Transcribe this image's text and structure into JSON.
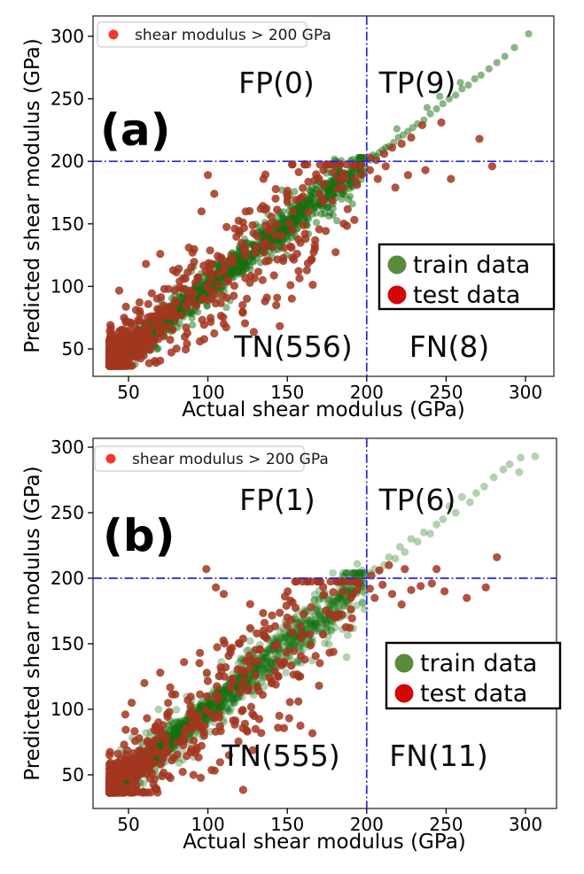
{
  "figure": {
    "background": "#ffffff",
    "border_color": "#3c3c3c",
    "tick_color": "#000000"
  },
  "chart_data": [
    {
      "type": "scatter",
      "panel_label": "(a)",
      "xlabel": "Actual shear modulus (GPa)",
      "ylabel": "Predicted shear modulus (GPa)",
      "x_ticks": [
        50,
        100,
        150,
        200,
        250,
        300
      ],
      "y_ticks": [
        50,
        100,
        150,
        200,
        250,
        300
      ],
      "xlim": [
        27,
        318
      ],
      "ylim": [
        27,
        317
      ],
      "grid": false,
      "threshold_gpa": 200,
      "threshold_line_color": "#2323e8",
      "inner_legend": {
        "label": "shear modulus > 200 GPa",
        "marker_color": "#f5372c",
        "position": "upper left"
      },
      "series_legend": {
        "position": "center right",
        "entries": [
          {
            "label": "train data",
            "color": "#5a8a3c"
          },
          {
            "label": "test data",
            "color": "#d40707"
          }
        ]
      },
      "quadrant_labels": {
        "FP": "FP(0)",
        "TP": "TP(9)",
        "TN": "TN(556)",
        "FN": "FN(8)"
      },
      "confusion_counts": {
        "FP": 0,
        "TP": 9,
        "TN": 556,
        "FN": 8
      },
      "series": [
        {
          "name": "train data",
          "color": "#157010",
          "opacity": 0.5,
          "radius": 4.1,
          "n_bulk": 2400,
          "seed": 20240,
          "bulk": {
            "xmin": 38,
            "range": 162,
            "power": 3.4,
            "uniform_frac": 0.1,
            "noise_base": 2.0,
            "noise_slope": 0.035,
            "wide_frac": 0.08,
            "wide_mult": 2.3,
            "ymin": 36.5,
            "ymax": 203
          },
          "feature_points": [
            [
              197,
              203
            ],
            [
              194,
              200
            ],
            [
              202,
              201
            ],
            [
              204,
              205
            ],
            [
              206,
              204
            ],
            [
              208,
              207
            ],
            [
              210,
              209
            ],
            [
              212,
              211
            ],
            [
              214,
              212
            ],
            [
              217,
              215
            ],
            [
              219,
              226
            ],
            [
              220,
              219
            ],
            [
              223,
              221
            ],
            [
              226,
              224
            ],
            [
              229,
              227
            ],
            [
              232,
              230
            ],
            [
              236,
              233
            ],
            [
              238,
              243
            ],
            [
              240,
              238
            ],
            [
              244,
              242
            ],
            [
              246,
              252
            ],
            [
              248,
              246
            ],
            [
              252,
              250
            ],
            [
              256,
              253
            ],
            [
              259,
              263
            ],
            [
              260,
              258
            ],
            [
              264,
              261
            ],
            [
              268,
              266
            ],
            [
              272,
              269
            ],
            [
              277,
              274
            ],
            [
              282,
              279
            ],
            [
              287,
              284
            ],
            [
              293,
              291
            ],
            [
              302,
              302
            ]
          ]
        },
        {
          "name": "test data",
          "color": "#a23620",
          "opacity": 0.85,
          "radius": 4.6,
          "n_bulk": 540,
          "seed": 777,
          "bulk": {
            "xmin": 38,
            "range": 160,
            "power": 3.0,
            "uniform_frac": 0.1,
            "noise_base": 4.5,
            "noise_slope": 0.16,
            "wide_frac": 0.06,
            "wide_mult": 1.8,
            "ymin": 36.5,
            "ymax": 197.5
          },
          "tp_points": [
            [
              202,
              203
            ],
            [
              206,
              201
            ],
            [
              211,
              206
            ],
            [
              216,
              211
            ],
            [
              222,
              214
            ],
            [
              228,
              219
            ],
            [
              235,
              229
            ],
            [
              247,
              231
            ],
            [
              271,
              218
            ]
          ],
          "fn_points": [
            [
              202,
              193
            ],
            [
              207,
              186
            ],
            [
              212,
              196
            ],
            [
              218,
              179
            ],
            [
              226,
              189
            ],
            [
              237,
              193
            ],
            [
              253,
              186
            ],
            [
              279,
              196
            ]
          ],
          "fp_points": [],
          "extra_points": [
            [
              100,
              189
            ],
            [
              104,
              174
            ],
            [
              96,
              160
            ],
            [
              135,
              186
            ],
            [
              172,
              170
            ],
            [
              185,
              179
            ],
            [
              192,
              196
            ],
            [
              160,
              172
            ],
            [
              150,
              168
            ],
            [
              120,
              143
            ],
            [
              88,
              131
            ],
            [
              70,
              126
            ],
            [
              61,
              118
            ],
            [
              95,
              56
            ],
            [
              110,
              70
            ],
            [
              122,
              79
            ],
            [
              136,
              88
            ],
            [
              152,
              101
            ],
            [
              165,
              121
            ],
            [
              143,
              85
            ]
          ]
        }
      ]
    },
    {
      "type": "scatter",
      "panel_label": "(b)",
      "xlabel": "Actual shear modulus (GPa)",
      "ylabel": "Predicted shear  modulus (GPa)",
      "x_ticks": [
        50,
        100,
        150,
        200,
        250,
        300
      ],
      "y_ticks": [
        50,
        100,
        150,
        200,
        250,
        300
      ],
      "xlim": [
        24,
        320
      ],
      "ylim": [
        24,
        307
      ],
      "grid": false,
      "threshold_gpa": 200,
      "threshold_line_color": "#2323e8",
      "inner_legend": {
        "label": "shear modulus > 200 GPa",
        "marker_color": "#f5372c",
        "position": "upper left"
      },
      "series_legend": {
        "position": "center right",
        "entries": [
          {
            "label": "train data",
            "color": "#5a8a3c"
          },
          {
            "label": "test data",
            "color": "#d40707"
          }
        ]
      },
      "quadrant_labels": {
        "FP": "FP(1)",
        "TP": "TP(6)",
        "TN": "TN(555)",
        "FN": "FN(11)"
      },
      "confusion_counts": {
        "FP": 1,
        "TP": 6,
        "TN": 555,
        "FN": 11
      },
      "series": [
        {
          "name": "train data",
          "color": "#157010",
          "opacity": 0.32,
          "radius": 4.4,
          "n_bulk": 2400,
          "seed": 31337,
          "bulk": {
            "xmin": 38,
            "range": 162,
            "power": 3.4,
            "uniform_frac": 0.1,
            "noise_base": 2.2,
            "noise_slope": 0.04,
            "wide_frac": 0.1,
            "wide_mult": 2.5,
            "ymin": 36.5,
            "ymax": 204
          },
          "feature_points": [
            [
              191,
              204
            ],
            [
              194,
              211
            ],
            [
              197,
              206
            ],
            [
              202,
              204
            ],
            [
              205,
              207
            ],
            [
              208,
              206
            ],
            [
              211,
              210
            ],
            [
              214,
              216
            ],
            [
              218,
              215
            ],
            [
              221,
              224
            ],
            [
              224,
              220
            ],
            [
              228,
              230
            ],
            [
              232,
              228
            ],
            [
              236,
              235
            ],
            [
              240,
              234
            ],
            [
              244,
              241
            ],
            [
              248,
              245
            ],
            [
              252,
              255
            ],
            [
              256,
              250
            ],
            [
              260,
              262
            ],
            [
              265,
              258
            ],
            [
              269,
              265
            ],
            [
              274,
              270
            ],
            [
              280,
              277
            ],
            [
              286,
              283
            ],
            [
              290,
              287
            ],
            [
              296,
              281
            ],
            [
              297,
              292
            ],
            [
              306,
              293
            ]
          ]
        },
        {
          "name": "test data",
          "color": "#a23620",
          "opacity": 0.85,
          "radius": 4.6,
          "n_bulk": 540,
          "seed": 555,
          "bulk": {
            "xmin": 38,
            "range": 160,
            "power": 3.0,
            "uniform_frac": 0.1,
            "noise_base": 4.8,
            "noise_slope": 0.17,
            "wide_frac": 0.06,
            "wide_mult": 1.8,
            "ymin": 36.5,
            "ymax": 197.5
          },
          "tp_points": [
            [
              203,
              202
            ],
            [
              208,
              206
            ],
            [
              214,
              210
            ],
            [
              224,
              207
            ],
            [
              244,
              207
            ],
            [
              282,
              216
            ]
          ],
          "fn_points": [
            [
              202,
              192
            ],
            [
              205,
              185
            ],
            [
              210,
              195
            ],
            [
              216,
              188
            ],
            [
              222,
              180
            ],
            [
              228,
              191
            ],
            [
              234,
              194
            ],
            [
              241,
              196
            ],
            [
              249,
              190
            ],
            [
              263,
              185
            ],
            [
              275,
              193
            ]
          ],
          "fp_points": [
            [
              99,
              207
            ]
          ],
          "extra_points": [
            [
              105,
              193
            ],
            [
              110,
              188
            ],
            [
              120,
              150
            ],
            [
              135,
              160
            ],
            [
              150,
              170
            ],
            [
              165,
              178
            ],
            [
              180,
              170
            ],
            [
              190,
              185
            ],
            [
              60,
              120
            ],
            [
              70,
              128
            ],
            [
              85,
              136
            ],
            [
              95,
              143
            ],
            [
              52,
              105
            ],
            [
              48,
              96
            ],
            [
              130,
              85
            ],
            [
              145,
              95
            ],
            [
              157,
              106
            ],
            [
              170,
              118
            ]
          ]
        }
      ]
    }
  ]
}
